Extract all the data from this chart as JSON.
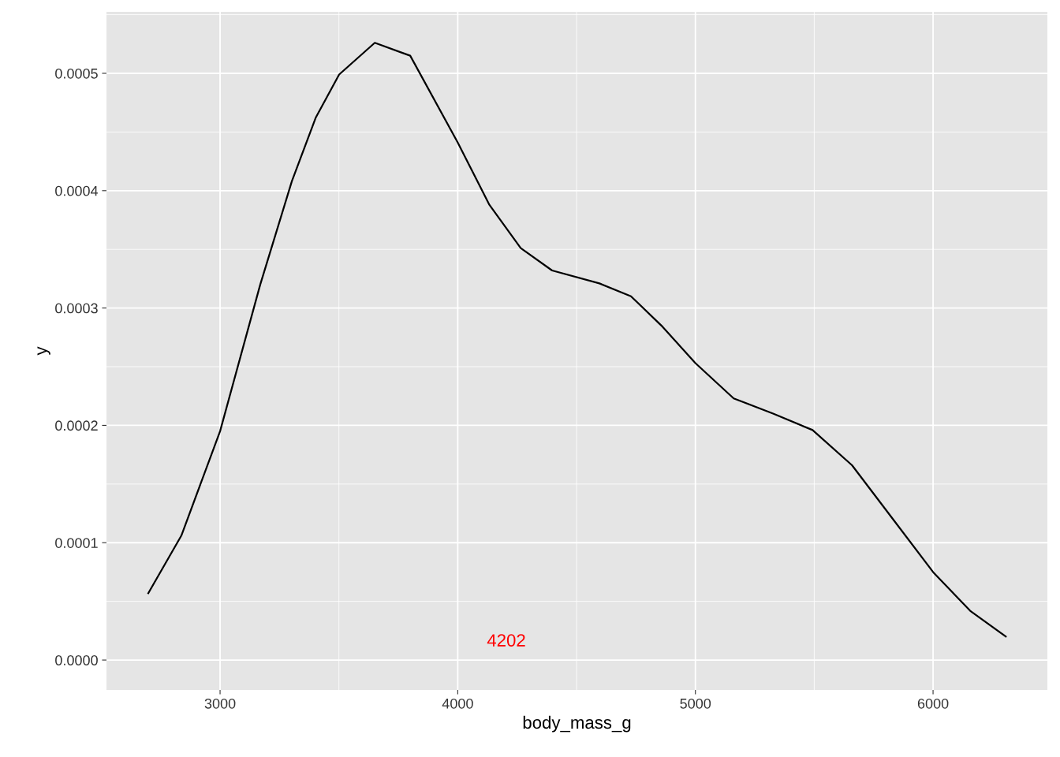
{
  "chart_data": {
    "type": "line",
    "xlabel": "body_mass_g",
    "ylabel": "y",
    "x": [
      2698,
      2837,
      3000,
      3169,
      3302,
      3402,
      3501,
      3651,
      3800,
      4000,
      4133,
      4265,
      4397,
      4596,
      4729,
      4862,
      5000,
      5161,
      5327,
      5493,
      5659,
      5824,
      6000,
      6156,
      6306
    ],
    "series": [
      {
        "color": "#000000",
        "values": [
          5.7e-05,
          0.000106,
          0.000195,
          0.00032,
          0.000408,
          0.000462,
          0.000499,
          0.000526,
          0.000515,
          0.000441,
          0.000388,
          0.000351,
          0.000332,
          0.000321,
          0.00031,
          0.000284,
          0.000253,
          0.000223,
          0.00021,
          0.000196,
          0.000166,
          0.000122,
          7.5e-05,
          4.2e-05,
          2e-05
        ]
      }
    ],
    "xlim": [
      2522,
      6481
    ],
    "ylim": [
      -2.55e-05,
      0.0005524
    ],
    "xticks": [
      3000,
      4000,
      5000,
      6000
    ],
    "yticks": [
      {
        "value": 0,
        "label": "0.0000"
      },
      {
        "value": 0.0001,
        "label": "0.0001"
      },
      {
        "value": 0.0002,
        "label": "0.0002"
      },
      {
        "value": 0.0003,
        "label": "0.0003"
      },
      {
        "value": 0.0004,
        "label": "0.0004"
      },
      {
        "value": 0.0005,
        "label": "0.0005"
      }
    ],
    "grid": true,
    "legend": false,
    "marker": "none",
    "line_style": "solid",
    "annotations": [
      "4202"
    ]
  }
}
